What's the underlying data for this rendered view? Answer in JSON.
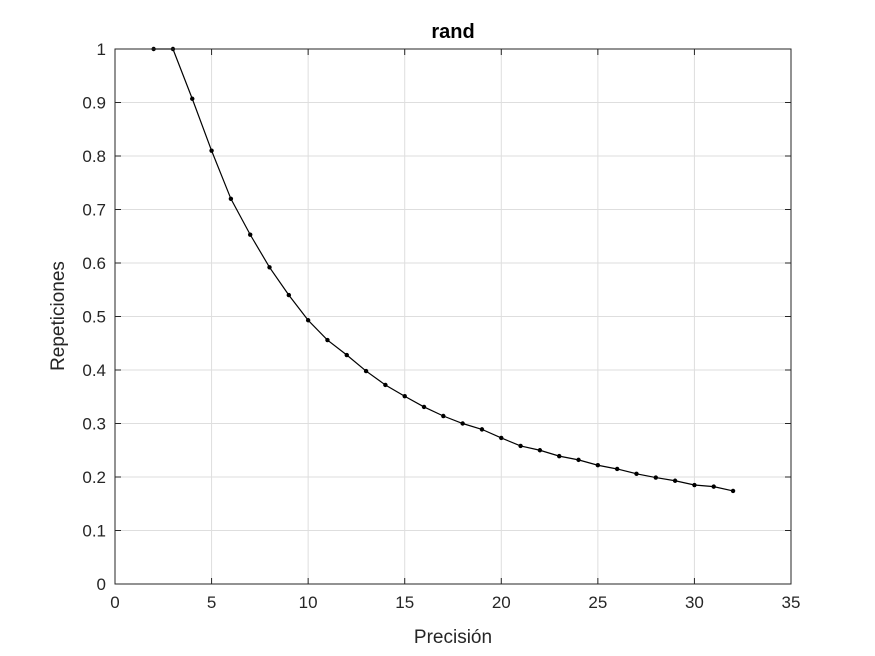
{
  "chart_data": {
    "type": "line",
    "title": "rand",
    "xlabel": "Precisión",
    "ylabel": "Repeticiones",
    "xlim": [
      0,
      35
    ],
    "ylim": [
      0,
      1
    ],
    "xticks": [
      0,
      5,
      10,
      15,
      20,
      25,
      30,
      35
    ],
    "yticks": [
      0,
      0.1,
      0.2,
      0.3,
      0.4,
      0.5,
      0.6,
      0.7,
      0.8,
      0.9,
      1
    ],
    "xtick_labels": [
      "0",
      "5",
      "10",
      "15",
      "20",
      "25",
      "30",
      "35"
    ],
    "ytick_labels": [
      "0",
      "0.1",
      "0.2",
      "0.3",
      "0.4",
      "0.5",
      "0.6",
      "0.7",
      "0.8",
      "0.9",
      "1"
    ],
    "grid": true,
    "series": [
      {
        "color": "#000000",
        "marker": "dot",
        "x": [
          2,
          3,
          4,
          5,
          6,
          7,
          8,
          9,
          10,
          11,
          12,
          13,
          14,
          15,
          16,
          17,
          18,
          19,
          20,
          21,
          22,
          23,
          24,
          25,
          26,
          27,
          28,
          29,
          30,
          31,
          32
        ],
        "y": [
          1.0,
          1.0,
          0.907,
          0.81,
          0.72,
          0.653,
          0.592,
          0.54,
          0.493,
          0.456,
          0.428,
          0.398,
          0.372,
          0.351,
          0.331,
          0.314,
          0.3,
          0.289,
          0.273,
          0.258,
          0.25,
          0.239,
          0.232,
          0.222,
          0.215,
          0.206,
          0.199,
          0.193,
          0.185,
          0.182,
          0.174
        ]
      }
    ]
  }
}
